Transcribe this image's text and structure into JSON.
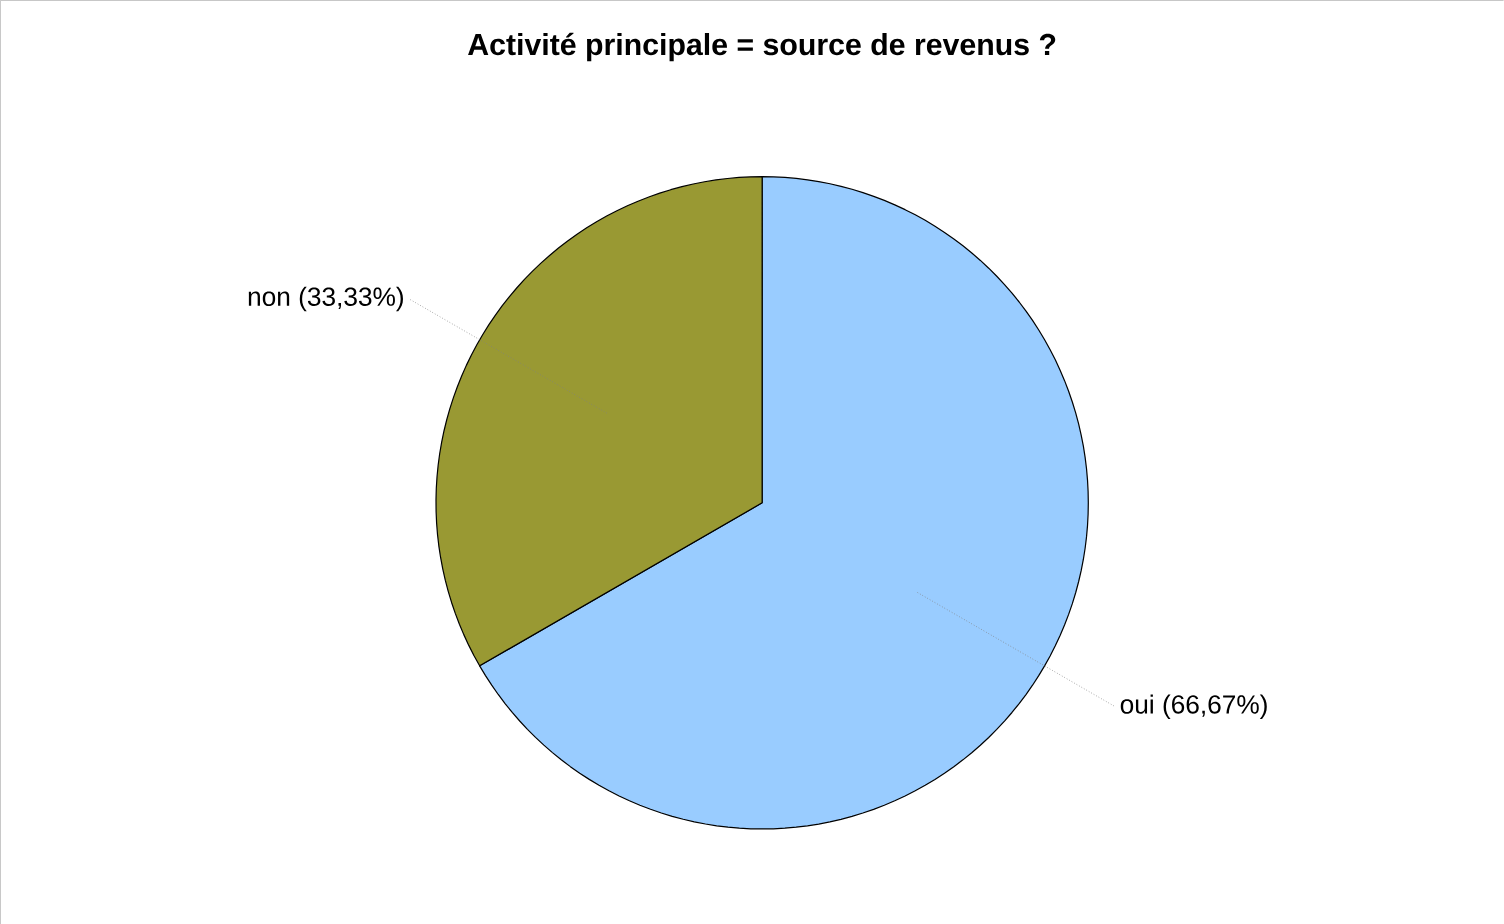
{
  "chart_data": {
    "type": "pie",
    "title": "Activité principale = source de revenus ?",
    "categories": [
      "oui",
      "non"
    ],
    "values": [
      66.67,
      33.33
    ],
    "value_labels": [
      "(66,67%)",
      "(33,33%)"
    ],
    "colors": [
      "#99ccff",
      "#999933"
    ]
  }
}
